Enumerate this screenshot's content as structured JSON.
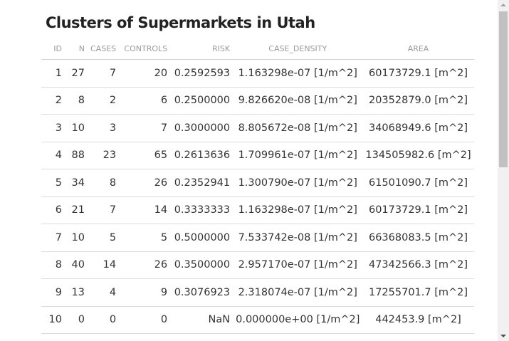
{
  "page": {
    "title": "Clusters of Supermarkets in Utah"
  },
  "table": {
    "headers": [
      "ID",
      "N",
      "CASES",
      "CONTROLS",
      "RISK",
      "CASE_DENSITY",
      "AREA"
    ],
    "rows": [
      [
        "1",
        "27",
        "7",
        "20",
        "0.2592593",
        "1.163298e-07 [1/m^2]",
        "60173729.1 [m^2]"
      ],
      [
        "2",
        "8",
        "2",
        "6",
        "0.2500000",
        "9.826620e-08 [1/m^2]",
        "20352879.0 [m^2]"
      ],
      [
        "3",
        "10",
        "3",
        "7",
        "0.3000000",
        "8.805672e-08 [1/m^2]",
        "34068949.6 [m^2]"
      ],
      [
        "4",
        "88",
        "23",
        "65",
        "0.2613636",
        "1.709961e-07 [1/m^2]",
        "134505982.6 [m^2]"
      ],
      [
        "5",
        "34",
        "8",
        "26",
        "0.2352941",
        "1.300790e-07 [1/m^2]",
        "61501090.7 [m^2]"
      ],
      [
        "6",
        "21",
        "7",
        "14",
        "0.3333333",
        "1.163298e-07 [1/m^2]",
        "60173729.1 [m^2]"
      ],
      [
        "7",
        "10",
        "5",
        "5",
        "0.5000000",
        "7.533742e-08 [1/m^2]",
        "66368083.5 [m^2]"
      ],
      [
        "8",
        "40",
        "14",
        "26",
        "0.3500000",
        "2.957170e-07 [1/m^2]",
        "47342566.3 [m^2]"
      ],
      [
        "9",
        "13",
        "4",
        "9",
        "0.3076923",
        "2.318074e-07 [1/m^2]",
        "17255701.7 [m^2]"
      ],
      [
        "10",
        "0",
        "0",
        "0",
        "NaN",
        "0.000000e+00 [1/m^2]",
        "442453.9 [m^2]"
      ]
    ]
  },
  "scrollbar": {
    "up_icon": "triangle-up-icon",
    "down_icon": "triangle-down-icon"
  }
}
